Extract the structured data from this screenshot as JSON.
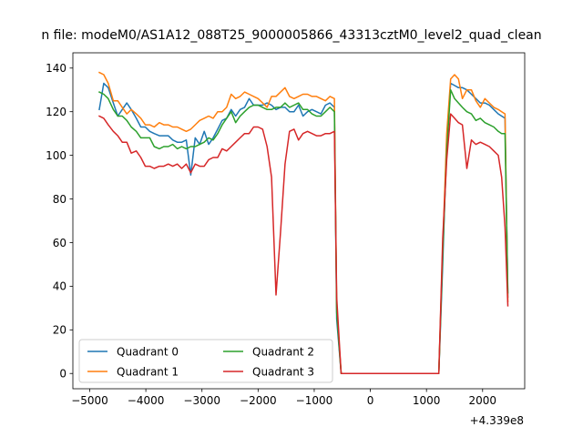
{
  "chart_data": {
    "type": "line",
    "title": "n file: modeM0/AS1A12_088T25_9000005866_43313cztM0_level2_quad_clean",
    "xlabel": "",
    "ylabel": "",
    "x_offset_label": "+4.339e8",
    "xlim": [
      -5300,
      2750
    ],
    "ylim": [
      -7,
      147
    ],
    "x_ticks": [
      -5000,
      -4000,
      -3000,
      -2000,
      -1000,
      0,
      1000,
      2000
    ],
    "x_tick_labels": [
      "−5000",
      "−4000",
      "−3000",
      "−2000",
      "−1000",
      "0",
      "1000",
      "2000"
    ],
    "y_ticks": [
      0,
      20,
      40,
      60,
      80,
      100,
      120,
      140
    ],
    "y_tick_labels": [
      "0",
      "20",
      "40",
      "60",
      "80",
      "100",
      "120",
      "140"
    ],
    "legend": {
      "position": "lower-left",
      "columns": 2
    },
    "grid": false,
    "series": [
      {
        "name": "Quadrant 0",
        "color": "#1f77b4",
        "points": [
          [
            -4830,
            121
          ],
          [
            -4750,
            133
          ],
          [
            -4670,
            131
          ],
          [
            -4580,
            124
          ],
          [
            -4500,
            118
          ],
          [
            -4420,
            121
          ],
          [
            -4340,
            124
          ],
          [
            -4260,
            121
          ],
          [
            -4170,
            117
          ],
          [
            -4090,
            113
          ],
          [
            -4010,
            113
          ],
          [
            -3930,
            111
          ],
          [
            -3850,
            110
          ],
          [
            -3760,
            109
          ],
          [
            -3680,
            109
          ],
          [
            -3600,
            109
          ],
          [
            -3520,
            107
          ],
          [
            -3440,
            106
          ],
          [
            -3360,
            106
          ],
          [
            -3280,
            107
          ],
          [
            -3200,
            91
          ],
          [
            -3120,
            108
          ],
          [
            -3040,
            105
          ],
          [
            -2960,
            111
          ],
          [
            -2880,
            105
          ],
          [
            -2800,
            108
          ],
          [
            -2720,
            112
          ],
          [
            -2640,
            116
          ],
          [
            -2560,
            117
          ],
          [
            -2480,
            121
          ],
          [
            -2400,
            118
          ],
          [
            -2320,
            121
          ],
          [
            -2240,
            122
          ],
          [
            -2160,
            126
          ],
          [
            -2080,
            123
          ],
          [
            -2000,
            123
          ],
          [
            -1920,
            123
          ],
          [
            -1840,
            124
          ],
          [
            -1760,
            123
          ],
          [
            -1680,
            121
          ],
          [
            -1600,
            122
          ],
          [
            -1520,
            122
          ],
          [
            -1440,
            120
          ],
          [
            -1360,
            120
          ],
          [
            -1280,
            123
          ],
          [
            -1200,
            118
          ],
          [
            -1120,
            120
          ],
          [
            -1040,
            121
          ],
          [
            -960,
            120
          ],
          [
            -880,
            119
          ],
          [
            -800,
            123
          ],
          [
            -720,
            124
          ],
          [
            -640,
            122
          ],
          [
            -600,
            25
          ],
          [
            -520,
            0
          ],
          [
            -400,
            0
          ],
          [
            0,
            0
          ],
          [
            600,
            0
          ],
          [
            1220,
            0
          ],
          [
            1290,
            50
          ],
          [
            1360,
            108
          ],
          [
            1430,
            133
          ],
          [
            1500,
            132
          ],
          [
            1570,
            131
          ],
          [
            1640,
            131
          ],
          [
            1720,
            130
          ],
          [
            1800,
            128
          ],
          [
            1880,
            126
          ],
          [
            1960,
            124
          ],
          [
            2040,
            124
          ],
          [
            2120,
            123
          ],
          [
            2200,
            121
          ],
          [
            2280,
            119
          ],
          [
            2340,
            118
          ],
          [
            2400,
            117
          ],
          [
            2450,
            35
          ]
        ]
      },
      {
        "name": "Quadrant 1",
        "color": "#ff7f0e",
        "points": [
          [
            -4830,
            138
          ],
          [
            -4750,
            137
          ],
          [
            -4670,
            133
          ],
          [
            -4580,
            125
          ],
          [
            -4500,
            125
          ],
          [
            -4420,
            122
          ],
          [
            -4340,
            119
          ],
          [
            -4260,
            121
          ],
          [
            -4170,
            119
          ],
          [
            -4090,
            117
          ],
          [
            -4010,
            114
          ],
          [
            -3930,
            114
          ],
          [
            -3850,
            113
          ],
          [
            -3760,
            115
          ],
          [
            -3680,
            114
          ],
          [
            -3600,
            114
          ],
          [
            -3520,
            113
          ],
          [
            -3440,
            113
          ],
          [
            -3360,
            112
          ],
          [
            -3280,
            111
          ],
          [
            -3200,
            112
          ],
          [
            -3120,
            114
          ],
          [
            -3040,
            116
          ],
          [
            -2960,
            117
          ],
          [
            -2880,
            118
          ],
          [
            -2800,
            117
          ],
          [
            -2720,
            120
          ],
          [
            -2640,
            120
          ],
          [
            -2560,
            122
          ],
          [
            -2480,
            128
          ],
          [
            -2400,
            126
          ],
          [
            -2320,
            127
          ],
          [
            -2240,
            129
          ],
          [
            -2160,
            128
          ],
          [
            -2080,
            127
          ],
          [
            -2000,
            126
          ],
          [
            -1920,
            124
          ],
          [
            -1840,
            122
          ],
          [
            -1760,
            127
          ],
          [
            -1680,
            127
          ],
          [
            -1600,
            129
          ],
          [
            -1520,
            131
          ],
          [
            -1440,
            127
          ],
          [
            -1360,
            126
          ],
          [
            -1280,
            127
          ],
          [
            -1200,
            128
          ],
          [
            -1120,
            128
          ],
          [
            -1040,
            127
          ],
          [
            -960,
            127
          ],
          [
            -880,
            126
          ],
          [
            -800,
            125
          ],
          [
            -720,
            127
          ],
          [
            -640,
            126
          ],
          [
            -600,
            30
          ],
          [
            -520,
            0
          ],
          [
            -400,
            0
          ],
          [
            0,
            0
          ],
          [
            600,
            0
          ],
          [
            1220,
            0
          ],
          [
            1290,
            58
          ],
          [
            1360,
            110
          ],
          [
            1430,
            135
          ],
          [
            1500,
            137
          ],
          [
            1570,
            135
          ],
          [
            1640,
            126
          ],
          [
            1720,
            130
          ],
          [
            1800,
            130
          ],
          [
            1880,
            125
          ],
          [
            1960,
            122
          ],
          [
            2040,
            126
          ],
          [
            2120,
            124
          ],
          [
            2200,
            122
          ],
          [
            2280,
            121
          ],
          [
            2340,
            120
          ],
          [
            2400,
            119
          ],
          [
            2450,
            33
          ]
        ]
      },
      {
        "name": "Quadrant 2",
        "color": "#2ca02c",
        "points": [
          [
            -4830,
            129
          ],
          [
            -4750,
            128
          ],
          [
            -4670,
            126
          ],
          [
            -4580,
            121
          ],
          [
            -4500,
            118
          ],
          [
            -4420,
            118
          ],
          [
            -4340,
            116
          ],
          [
            -4260,
            113
          ],
          [
            -4170,
            111
          ],
          [
            -4090,
            108
          ],
          [
            -4010,
            108
          ],
          [
            -3930,
            108
          ],
          [
            -3850,
            104
          ],
          [
            -3760,
            103
          ],
          [
            -3680,
            104
          ],
          [
            -3600,
            104
          ],
          [
            -3520,
            105
          ],
          [
            -3440,
            103
          ],
          [
            -3360,
            104
          ],
          [
            -3280,
            103
          ],
          [
            -3200,
            104
          ],
          [
            -3120,
            104
          ],
          [
            -3040,
            105
          ],
          [
            -2960,
            106
          ],
          [
            -2880,
            108
          ],
          [
            -2800,
            107
          ],
          [
            -2720,
            110
          ],
          [
            -2640,
            114
          ],
          [
            -2560,
            117
          ],
          [
            -2480,
            120
          ],
          [
            -2400,
            115
          ],
          [
            -2320,
            118
          ],
          [
            -2240,
            120
          ],
          [
            -2160,
            122
          ],
          [
            -2080,
            123
          ],
          [
            -2000,
            123
          ],
          [
            -1920,
            122
          ],
          [
            -1840,
            121
          ],
          [
            -1760,
            121
          ],
          [
            -1680,
            122
          ],
          [
            -1600,
            122
          ],
          [
            -1520,
            124
          ],
          [
            -1440,
            122
          ],
          [
            -1360,
            123
          ],
          [
            -1280,
            124
          ],
          [
            -1200,
            121
          ],
          [
            -1120,
            121
          ],
          [
            -1040,
            119
          ],
          [
            -960,
            118
          ],
          [
            -880,
            118
          ],
          [
            -800,
            120
          ],
          [
            -720,
            122
          ],
          [
            -640,
            120
          ],
          [
            -600,
            28
          ],
          [
            -520,
            0
          ],
          [
            -400,
            0
          ],
          [
            0,
            0
          ],
          [
            600,
            0
          ],
          [
            1220,
            0
          ],
          [
            1290,
            55
          ],
          [
            1360,
            102
          ],
          [
            1430,
            130
          ],
          [
            1500,
            126
          ],
          [
            1570,
            124
          ],
          [
            1640,
            122
          ],
          [
            1720,
            120
          ],
          [
            1800,
            119
          ],
          [
            1880,
            116
          ],
          [
            1960,
            117
          ],
          [
            2040,
            115
          ],
          [
            2120,
            114
          ],
          [
            2200,
            113
          ],
          [
            2280,
            111
          ],
          [
            2340,
            110
          ],
          [
            2400,
            110
          ],
          [
            2450,
            37
          ]
        ]
      },
      {
        "name": "Quadrant 3",
        "color": "#d62728",
        "points": [
          [
            -4830,
            118
          ],
          [
            -4750,
            117
          ],
          [
            -4670,
            114
          ],
          [
            -4580,
            111
          ],
          [
            -4500,
            109
          ],
          [
            -4420,
            106
          ],
          [
            -4340,
            106
          ],
          [
            -4260,
            101
          ],
          [
            -4170,
            102
          ],
          [
            -4090,
            99
          ],
          [
            -4010,
            95
          ],
          [
            -3930,
            95
          ],
          [
            -3850,
            94
          ],
          [
            -3760,
            95
          ],
          [
            -3680,
            95
          ],
          [
            -3600,
            96
          ],
          [
            -3520,
            95
          ],
          [
            -3440,
            96
          ],
          [
            -3360,
            94
          ],
          [
            -3280,
            96
          ],
          [
            -3200,
            92
          ],
          [
            -3120,
            96
          ],
          [
            -3040,
            95
          ],
          [
            -2960,
            95
          ],
          [
            -2880,
            98
          ],
          [
            -2800,
            99
          ],
          [
            -2720,
            99
          ],
          [
            -2640,
            103
          ],
          [
            -2560,
            102
          ],
          [
            -2480,
            104
          ],
          [
            -2400,
            106
          ],
          [
            -2320,
            108
          ],
          [
            -2240,
            110
          ],
          [
            -2160,
            110
          ],
          [
            -2080,
            113
          ],
          [
            -2000,
            113
          ],
          [
            -1920,
            112
          ],
          [
            -1840,
            104
          ],
          [
            -1760,
            90
          ],
          [
            -1680,
            36
          ],
          [
            -1600,
            65
          ],
          [
            -1520,
            96
          ],
          [
            -1440,
            111
          ],
          [
            -1360,
            112
          ],
          [
            -1280,
            107
          ],
          [
            -1200,
            110
          ],
          [
            -1120,
            111
          ],
          [
            -1040,
            110
          ],
          [
            -960,
            109
          ],
          [
            -880,
            109
          ],
          [
            -800,
            110
          ],
          [
            -720,
            110
          ],
          [
            -640,
            111
          ],
          [
            -600,
            35
          ],
          [
            -520,
            0
          ],
          [
            -400,
            0
          ],
          [
            0,
            0
          ],
          [
            600,
            0
          ],
          [
            1220,
            0
          ],
          [
            1290,
            62
          ],
          [
            1360,
            98
          ],
          [
            1430,
            119
          ],
          [
            1500,
            117
          ],
          [
            1570,
            115
          ],
          [
            1640,
            114
          ],
          [
            1720,
            94
          ],
          [
            1800,
            107
          ],
          [
            1880,
            105
          ],
          [
            1960,
            106
          ],
          [
            2040,
            105
          ],
          [
            2120,
            104
          ],
          [
            2200,
            102
          ],
          [
            2280,
            100
          ],
          [
            2340,
            90
          ],
          [
            2400,
            67
          ],
          [
            2450,
            31
          ]
        ]
      }
    ]
  }
}
